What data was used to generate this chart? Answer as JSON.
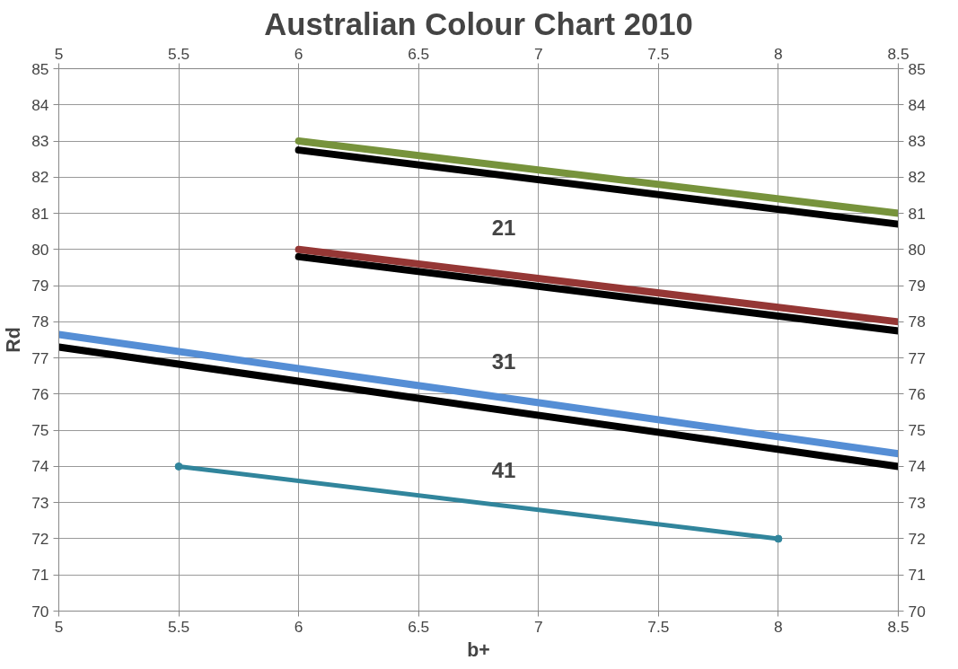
{
  "chart_data": {
    "type": "line",
    "title": "Australian Colour Chart 2010",
    "xlabel": "b+",
    "ylabel": "Rd",
    "series": [
      {
        "color": "#000000",
        "x": [
          6,
          8.5
        ],
        "values": [
          82.75,
          80.7
        ],
        "marker": "none"
      },
      {
        "color": "#77933c",
        "x": [
          6,
          8.5
        ],
        "values": [
          83,
          81
        ],
        "marker": "none"
      },
      {
        "color": "#000000",
        "x": [
          6,
          8.5
        ],
        "values": [
          79.8,
          77.75
        ],
        "marker": "none"
      },
      {
        "color": "#953735",
        "x": [
          6,
          8.5
        ],
        "values": [
          80,
          78
        ],
        "marker": "none"
      },
      {
        "color": "#000000",
        "x": [
          5,
          8.5
        ],
        "values": [
          77.3,
          74
        ],
        "marker": "none"
      },
      {
        "color": "#558ed5",
        "x": [
          5,
          8.5
        ],
        "values": [
          77.65,
          74.35
        ],
        "marker": "none"
      },
      {
        "color": "#31859c",
        "x": [
          5.5,
          8
        ],
        "values": [
          74,
          72
        ],
        "marker": "circle"
      }
    ],
    "annotations": [
      "21",
      "31",
      "41"
    ],
    "xlim": [
      5,
      8.5
    ],
    "xticks": [
      5,
      5.5,
      6,
      6.5,
      7,
      7.5,
      8,
      8.5
    ],
    "x2lim": [
      5,
      8.5
    ],
    "x2ticks": [
      5,
      5.5,
      6,
      6.5,
      7,
      7.5,
      8,
      8.5
    ],
    "ylim": [
      70,
      85
    ],
    "yticks": [
      70,
      71,
      72,
      73,
      74,
      75,
      76,
      77,
      78,
      79,
      80,
      81,
      82,
      83,
      84,
      85
    ],
    "y2lim": [
      70,
      85
    ],
    "y2ticks": [
      70,
      71,
      72,
      73,
      74,
      75,
      76,
      77,
      78,
      79,
      80,
      81,
      82,
      83,
      84,
      85
    ],
    "grid": true,
    "line_style": "solid"
  }
}
